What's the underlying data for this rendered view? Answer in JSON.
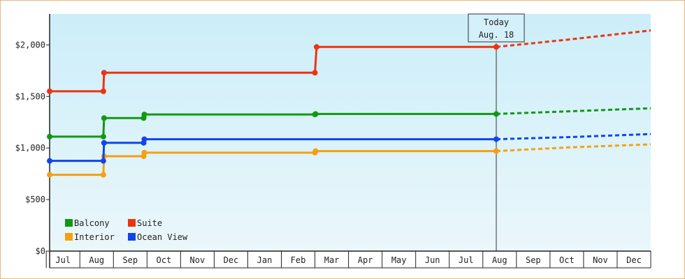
{
  "chart_data": {
    "type": "line",
    "title": "",
    "xlabel": "",
    "ylabel": "",
    "ylim": [
      0,
      2300
    ],
    "yticks": [
      {
        "value": 0,
        "label": "$0"
      },
      {
        "value": 500,
        "label": "$500"
      },
      {
        "value": 1000,
        "label": "$1,000"
      },
      {
        "value": 1500,
        "label": "$1,500"
      },
      {
        "value": 2000,
        "label": "$2,000"
      }
    ],
    "x_months": [
      "Jul",
      "Aug",
      "Sep",
      "Oct",
      "Nov",
      "Dec",
      "Jan",
      "Feb",
      "Mar",
      "Apr",
      "May",
      "Jun",
      "Jul",
      "Aug",
      "Sep",
      "Oct",
      "Nov",
      "Dec"
    ],
    "x_start_month_index": -0.4,
    "x_end_month_index": 17.5,
    "today": {
      "line1": "Today",
      "line2": "Aug. 18",
      "x": 12.9
    },
    "grid": false,
    "legend_position": "bottom-left",
    "series": [
      {
        "name": "Balcony",
        "color": "#119911",
        "points": [
          [
            -0.4,
            1110
          ],
          [
            1.2,
            1110
          ],
          [
            1.22,
            1290
          ],
          [
            2.4,
            1290
          ],
          [
            2.42,
            1325
          ],
          [
            7.5,
            1325
          ],
          [
            7.52,
            1330
          ],
          [
            12.9,
            1330
          ]
        ],
        "forecast": [
          [
            12.9,
            1330
          ],
          [
            15.0,
            1355
          ],
          [
            17.5,
            1385
          ]
        ]
      },
      {
        "name": "Suite",
        "color": "#ee3311",
        "points": [
          [
            -0.4,
            1550
          ],
          [
            1.2,
            1550
          ],
          [
            1.22,
            1730
          ],
          [
            7.5,
            1730
          ],
          [
            7.55,
            1980
          ],
          [
            12.9,
            1980
          ]
        ],
        "forecast": [
          [
            12.9,
            1980
          ],
          [
            15.0,
            2050
          ],
          [
            17.5,
            2140
          ]
        ]
      },
      {
        "name": "Interior",
        "color": "#f5a011",
        "points": [
          [
            -0.4,
            740
          ],
          [
            1.2,
            740
          ],
          [
            1.22,
            920
          ],
          [
            2.4,
            920
          ],
          [
            2.42,
            955
          ],
          [
            7.5,
            955
          ],
          [
            7.52,
            970
          ],
          [
            12.9,
            970
          ]
        ],
        "forecast": [
          [
            12.9,
            970
          ],
          [
            15.0,
            1005
          ],
          [
            17.5,
            1035
          ]
        ]
      },
      {
        "name": "Ocean View",
        "color": "#1144ee",
        "points": [
          [
            -0.4,
            875
          ],
          [
            1.2,
            875
          ],
          [
            1.22,
            1050
          ],
          [
            2.4,
            1050
          ],
          [
            2.42,
            1085
          ],
          [
            12.9,
            1085
          ]
        ],
        "forecast": [
          [
            12.9,
            1085
          ],
          [
            15.0,
            1105
          ],
          [
            17.5,
            1135
          ]
        ]
      }
    ]
  }
}
